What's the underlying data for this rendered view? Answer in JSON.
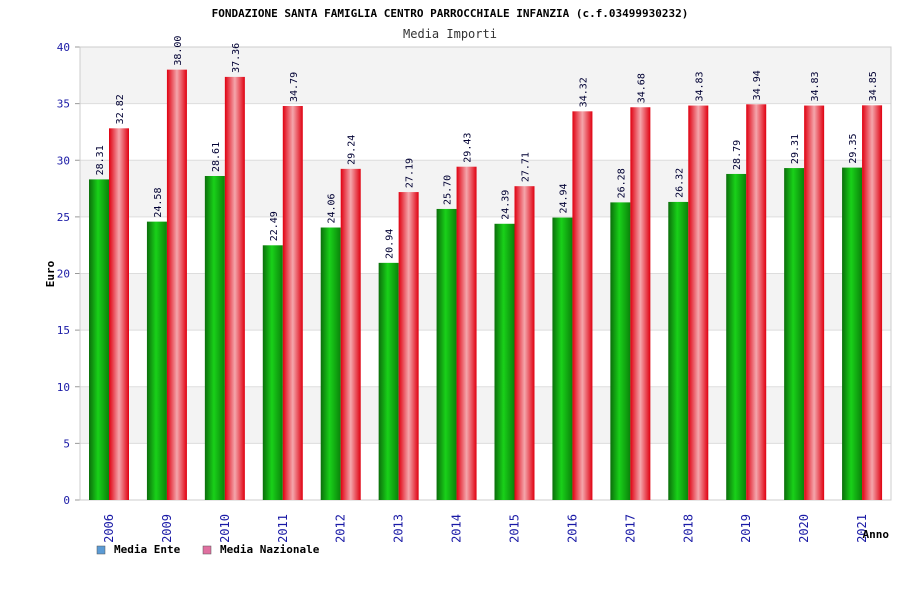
{
  "chart_data": {
    "type": "bar",
    "title": "FONDAZIONE SANTA FAMIGLIA CENTRO PARROCCHIALE INFANZIA (c.f.03499930232)",
    "subtitle": "Media Importi",
    "ylabel": "Euro",
    "xlabel": "Anno",
    "ylim": [
      0,
      40
    ],
    "yticks": [
      0,
      5,
      10,
      15,
      20,
      25,
      30,
      35,
      40
    ],
    "grid": "horizontal",
    "legend_position": "bottom-left",
    "categories": [
      "2006",
      "2009",
      "2010",
      "2011",
      "2012",
      "2013",
      "2014",
      "2015",
      "2016",
      "2017",
      "2018",
      "2019",
      "2020",
      "2021"
    ],
    "series": [
      {
        "name": "Media Ente",
        "color": "#0a9a0a",
        "legend_color": "#5b9bd5",
        "values": [
          28.31,
          24.58,
          28.61,
          22.49,
          24.06,
          20.94,
          25.7,
          24.39,
          24.94,
          26.28,
          26.32,
          28.79,
          29.31,
          29.35
        ],
        "labels": [
          "28.31",
          "24.58",
          "28.61",
          "22.49",
          "24.06",
          "20.94",
          "25.70",
          "24.39",
          "24.94",
          "26.28",
          "26.32",
          "28.79",
          "29.31",
          "29.35"
        ]
      },
      {
        "name": "Media Nazionale",
        "color": "#e0101a",
        "legend_color": "#e070a0",
        "values": [
          32.82,
          38.0,
          37.36,
          34.79,
          29.24,
          27.19,
          29.43,
          27.71,
          34.32,
          34.68,
          34.83,
          34.94,
          34.83,
          34.85
        ],
        "labels": [
          "32.82",
          "38.00",
          "37.36",
          "34.79",
          "29.24",
          "27.19",
          "29.43",
          "27.71",
          "34.32",
          "34.68",
          "34.83",
          "34.94",
          "34.83",
          "34.85"
        ]
      }
    ]
  }
}
